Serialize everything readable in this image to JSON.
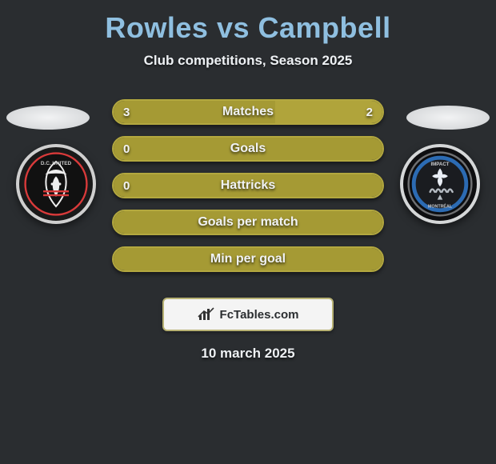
{
  "header": {
    "player1": "Rowles",
    "vs": "vs",
    "player2": "Campbell",
    "subtitle": "Club competitions, Season 2025",
    "title_color_p1": "#8fbfe0",
    "title_color_vs": "#8fbfe0",
    "title_color_p2": "#8fbfe0"
  },
  "teams": {
    "left": {
      "name": "D.C. United",
      "ring_color": "#cfcfcf",
      "bg": "#1a1a1a"
    },
    "right": {
      "name": "CF Montréal",
      "ring_color": "#d5d7d8",
      "bg": "#0e0e10"
    }
  },
  "stats": [
    {
      "key": "matches",
      "label": "Matches",
      "left_value": "3",
      "right_value": "2",
      "left_fill_pct": 60,
      "right_fill_pct": 40,
      "left_fill_color": "#a59a34",
      "right_fill_color": "#b0a43b",
      "border_color": "#b3a83f",
      "track_color": "#2a2d30"
    },
    {
      "key": "goals",
      "label": "Goals",
      "left_value": "0",
      "right_value": "",
      "left_fill_pct": 100,
      "right_fill_pct": 0,
      "left_fill_color": "#a59a34",
      "right_fill_color": "#a59a34",
      "border_color": "#b3a83f",
      "track_color": "#2a2d30"
    },
    {
      "key": "hattricks",
      "label": "Hattricks",
      "left_value": "0",
      "right_value": "",
      "left_fill_pct": 100,
      "right_fill_pct": 0,
      "left_fill_color": "#a59a34",
      "right_fill_color": "#a59a34",
      "border_color": "#b3a83f",
      "track_color": "#2a2d30"
    },
    {
      "key": "goals-per-match",
      "label": "Goals per match",
      "left_value": "",
      "right_value": "",
      "left_fill_pct": 100,
      "right_fill_pct": 0,
      "left_fill_color": "#a59a34",
      "right_fill_color": "#a59a34",
      "border_color": "#b3a83f",
      "track_color": "#2a2d30"
    },
    {
      "key": "min-per-goal",
      "label": "Min per goal",
      "left_value": "",
      "right_value": "",
      "left_fill_pct": 100,
      "right_fill_pct": 0,
      "left_fill_color": "#a59a34",
      "right_fill_color": "#a59a34",
      "border_color": "#b3a83f",
      "track_color": "#2a2d30"
    }
  ],
  "watermark": {
    "text": "FcTables.com",
    "box_bg": "#f4f4f4",
    "box_border": "#b8b274"
  },
  "footer": {
    "date": "10 march 2025"
  },
  "palette": {
    "page_bg": "#2a2d30",
    "text_light": "#eef1f4"
  }
}
